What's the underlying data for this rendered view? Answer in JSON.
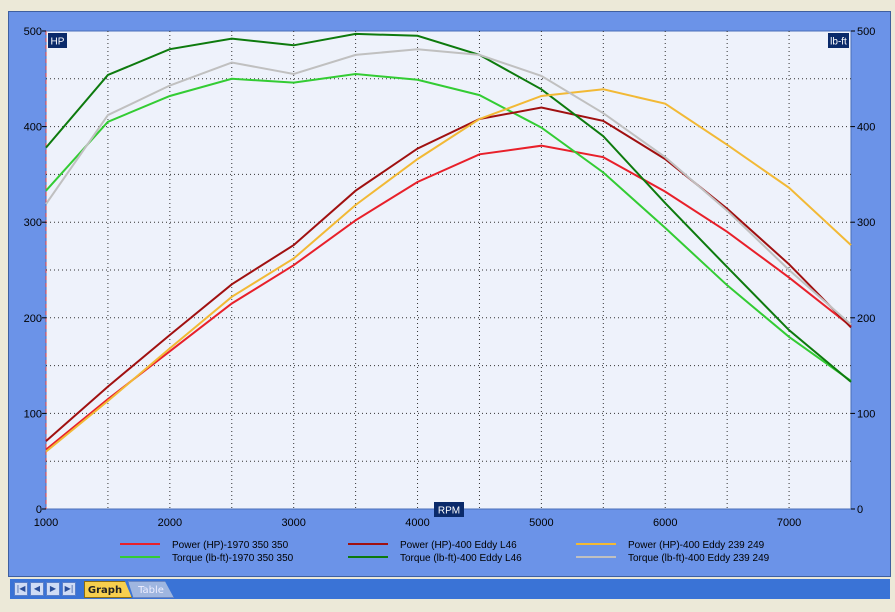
{
  "tabs": {
    "graph": "Graph",
    "table": "Table"
  },
  "chart_data": {
    "type": "line",
    "left_axis_label": "HP",
    "right_axis_label": "lb-ft",
    "xlabel": "RPM",
    "x_ticks": [
      1000,
      2000,
      3000,
      4000,
      5000,
      6000,
      7000
    ],
    "x_tick_labels": [
      "1000",
      "2000",
      "3000",
      "4000",
      "5000",
      "6000",
      "7000"
    ],
    "xlim": [
      1000,
      7500
    ],
    "ylim": [
      0,
      500
    ],
    "y_ticks": [
      0,
      100,
      200,
      300,
      400,
      500
    ],
    "y_tick_labels": [
      "0",
      "100",
      "200",
      "300",
      "400",
      "500"
    ],
    "grid": true,
    "legend_position": "bottom",
    "x": [
      1000,
      1500,
      2000,
      2500,
      3000,
      3500,
      4000,
      4500,
      5000,
      5500,
      6000,
      6500,
      7000,
      7500
    ],
    "series": [
      {
        "name": "Power (HP)-1970 350 350",
        "color": "#e8202a",
        "values": [
          62,
          115,
          165,
          215,
          255,
          302,
          342,
          371,
          380,
          368,
          332,
          290,
          242,
          191
        ]
      },
      {
        "name": "Torque (lb-ft)-1970 350 350",
        "color": "#33cc33",
        "values": [
          333,
          405,
          432,
          450,
          446,
          455,
          449,
          433,
          399,
          352,
          294,
          234,
          180,
          134
        ]
      },
      {
        "name": "Power (HP)-400 Eddy L46",
        "color": "#a01010",
        "values": [
          71,
          128,
          182,
          235,
          276,
          333,
          377,
          408,
          420,
          406,
          366,
          314,
          256,
          190
        ]
      },
      {
        "name": "Torque (lb-ft)-400 Eddy L46",
        "color": "#0d7a0d",
        "values": [
          378,
          454,
          481,
          492,
          485,
          497,
          495,
          475,
          439,
          390,
          320,
          253,
          187,
          133
        ]
      },
      {
        "name": "Power (HP)-400 Eddy 239 249",
        "color": "#f2b935",
        "values": [
          60,
          113,
          168,
          222,
          262,
          318,
          366,
          408,
          432,
          439,
          424,
          381,
          336,
          276
        ]
      },
      {
        "name": "Torque (lb-ft)-400 Eddy 239 249",
        "color": "#c0c0c0",
        "values": [
          319,
          412,
          443,
          467,
          455,
          475,
          481,
          475,
          453,
          414,
          368,
          312,
          250,
          193
        ]
      }
    ]
  }
}
